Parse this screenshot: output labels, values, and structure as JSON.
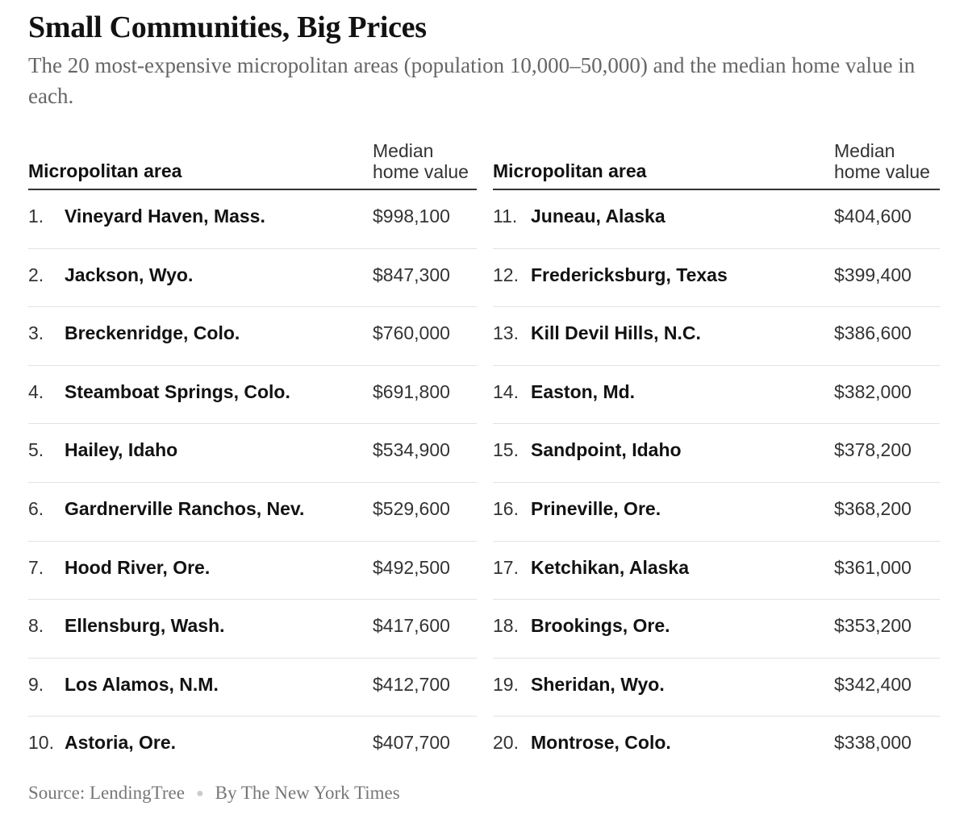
{
  "title": "Small Communities, Big Prices",
  "subtitle": "The 20 most-expensive micropolitan areas (population 10,000–50,000) and the median home value in each.",
  "columns": {
    "area": "Micropolitan area",
    "value_line1": "Median",
    "value_line2": "home value"
  },
  "chart_data": {
    "type": "table",
    "title": "Small Communities, Big Prices",
    "columns": [
      "Micropolitan area",
      "Median home value"
    ],
    "rows": [
      {
        "rank": "1.",
        "name": "Vineyard Haven, Mass.",
        "value": "$998,100"
      },
      {
        "rank": "2.",
        "name": "Jackson, Wyo.",
        "value": "$847,300"
      },
      {
        "rank": "3.",
        "name": "Breckenridge, Colo.",
        "value": "$760,000"
      },
      {
        "rank": "4.",
        "name": "Steamboat Springs, Colo.",
        "value": "$691,800"
      },
      {
        "rank": "5.",
        "name": "Hailey, Idaho",
        "value": "$534,900"
      },
      {
        "rank": "6.",
        "name": "Gardnerville Ranchos, Nev.",
        "value": "$529,600"
      },
      {
        "rank": "7.",
        "name": "Hood River, Ore.",
        "value": "$492,500"
      },
      {
        "rank": "8.",
        "name": "Ellensburg, Wash.",
        "value": "$417,600"
      },
      {
        "rank": "9.",
        "name": "Los Alamos, N.M.",
        "value": "$412,700"
      },
      {
        "rank": "10.",
        "name": "Astoria, Ore.",
        "value": "$407,700"
      },
      {
        "rank": "11.",
        "name": "Juneau, Alaska",
        "value": "$404,600"
      },
      {
        "rank": "12.",
        "name": "Fredericksburg, Texas",
        "value": "$399,400"
      },
      {
        "rank": "13.",
        "name": "Kill Devil Hills, N.C.",
        "value": "$386,600"
      },
      {
        "rank": "14.",
        "name": "Easton, Md.",
        "value": "$382,000"
      },
      {
        "rank": "15.",
        "name": "Sandpoint, Idaho",
        "value": "$378,200"
      },
      {
        "rank": "16.",
        "name": "Prineville, Ore.",
        "value": "$368,200"
      },
      {
        "rank": "17.",
        "name": "Ketchikan, Alaska",
        "value": "$361,000"
      },
      {
        "rank": "18.",
        "name": "Brookings, Ore.",
        "value": "$353,200"
      },
      {
        "rank": "19.",
        "name": "Sheridan, Wyo.",
        "value": "$342,400"
      },
      {
        "rank": "20.",
        "name": "Montrose, Colo.",
        "value": "$338,000"
      }
    ]
  },
  "footer": {
    "source": "Source:  LendingTree",
    "byline": "By The New York Times"
  }
}
